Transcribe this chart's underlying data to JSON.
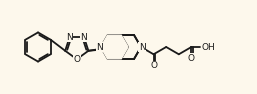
{
  "bg_color": "#fdf8ec",
  "line_color": "#1a1a1a",
  "line_width": 1.3,
  "font_size": 6.5,
  "font_family": "DejaVu Sans",
  "figsize": [
    2.57,
    0.94
  ],
  "dpi": 100,
  "xlim": [
    0,
    10.8
  ],
  "ylim": [
    0.5,
    4.5
  ]
}
